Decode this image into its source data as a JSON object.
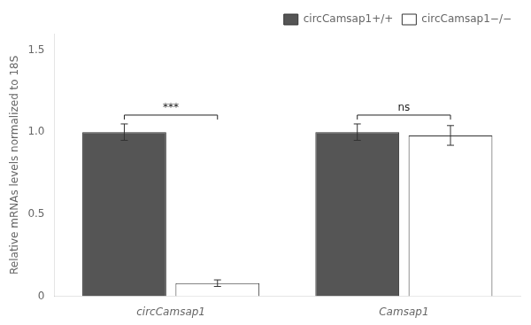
{
  "chart_data": {
    "type": "bar",
    "categories": [
      "circCamsap1",
      "Camsap1"
    ],
    "series": [
      {
        "name": "circCamsap1+/+",
        "color": "#555555",
        "values": [
          1.0,
          1.0
        ],
        "errors": [
          0.05,
          0.05
        ]
      },
      {
        "name": "circCamsap1−/−",
        "color": "#ffffff",
        "values": [
          0.08,
          0.98
        ],
        "errors": [
          0.02,
          0.06
        ]
      }
    ],
    "ylabel": "Relative mRNAs levels normalized to 18S",
    "ylim": [
      0,
      1.6
    ],
    "yticks": [
      0,
      0.5,
      {
        "value": 1,
        "label": "1.0"
      },
      1.5
    ],
    "annotations": [
      {
        "text": "***",
        "category": "circCamsap1"
      },
      {
        "text": "ns",
        "category": "Camsap1"
      }
    ],
    "legend": "upper right",
    "grid": false
  }
}
